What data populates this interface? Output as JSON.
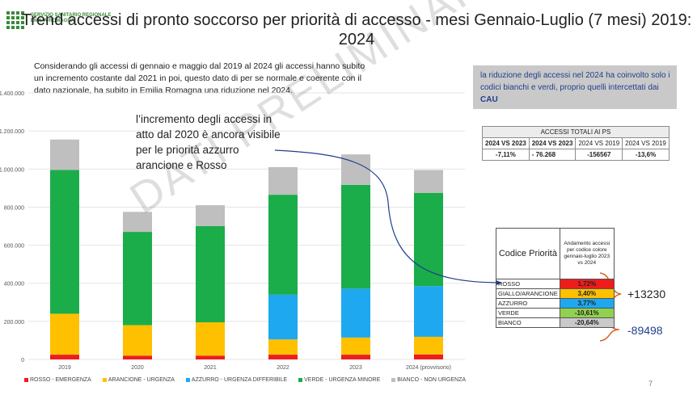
{
  "logo": {
    "line1": "SERVIZIO SANITARIO REGIONALE",
    "line2": "EMILIA-ROMAGNA"
  },
  "slide_title": "Trend accessi di pronto soccorso per priorità di accesso - mesi Gennaio-Luglio (7 mesi) 2019: 2024",
  "intro_text": "Considerando gli accessi di gennaio e maggio dal 2019 al 2024 gli accessi hanno subito un incremento costante dal 2021 in poi, questo dato di per se normale e coerente con il dato nazionale, ha subito in Emilia Romagna una riduzione nel 2024.",
  "note": {
    "text": "la riduzione degli accessi nel 2024 ha coinvolto solo i codici bianchi e verdi, proprio quelli intercettati dai ",
    "highlight": "CAU"
  },
  "callout": "l’incremento degli accessi in atto dal 2020 è ancora visibile per le priorità azzurro arancione e Rosso",
  "watermark": "DATI PRELIMINARI",
  "totals_table": {
    "header": "ACCESSI TOTALI AI PS",
    "columns": [
      "2024 VS 2023",
      "2024 VS 2023",
      "2024 VS 2019",
      "2024 VS 2019"
    ],
    "values": [
      "-7,11%",
      "-   76.268",
      "-156567",
      "-13,6%"
    ]
  },
  "priority_table": {
    "col1_header": "Codice Priorità",
    "col2_header": "Andamento accessi per codice colore gennaio-luglio 2023 vs 2024",
    "rows": [
      {
        "label": "ROSSO",
        "value": "1,72%",
        "color": "#ee1c1c"
      },
      {
        "label": "GIALLO/ARANCIONE",
        "value": "3,40%",
        "color": "#ffc000"
      },
      {
        "label": "AZZURRO",
        "value": "3,77%",
        "color": "#1ea8f0"
      },
      {
        "label": "VERDE",
        "value": "-10,61%",
        "color": "#92d050"
      },
      {
        "label": "BIANCO",
        "value": "-20,64%",
        "color": "#c9c9c9"
      }
    ]
  },
  "group_totals": {
    "up": "+13230",
    "down": "-89498"
  },
  "page_number": "7",
  "chart_data": {
    "type": "bar",
    "stacked": true,
    "categories": [
      "2019",
      "2020",
      "2021",
      "2022",
      "2023",
      "2024 (provvisorio)"
    ],
    "ylim": [
      0,
      1400000
    ],
    "yticks": [
      0,
      200000,
      400000,
      600000,
      800000,
      1000000,
      1200000,
      1400000
    ],
    "ytick_labels": [
      "0",
      "200.000",
      "400.000",
      "600.000",
      "800.000",
      "1.000.000",
      "1.200.000",
      "1.400.000"
    ],
    "grid": true,
    "legend_position": "bottom",
    "series": [
      {
        "name": "ROSSO - EMERGENZA",
        "color": "#ee1c1c",
        "values": [
          25000,
          20000,
          20000,
          25000,
          25000,
          26000
        ]
      },
      {
        "name": "ARANCIONE - URGENZA",
        "color": "#ffc000",
        "values": [
          215000,
          160000,
          175000,
          80000,
          90000,
          93000
        ]
      },
      {
        "name": "AZZURRO - URGENZA DIFFERIBILE",
        "color": "#1ea8f0",
        "values": [
          0,
          0,
          0,
          235000,
          257000,
          266000
        ]
      },
      {
        "name": "VERDE - URGENZA MINORE",
        "color": "#1aad4a",
        "values": [
          755000,
          490000,
          505000,
          525000,
          545000,
          490000
        ]
      },
      {
        "name": "BIANCO - NON URGENZA",
        "color": "#bfbfbf",
        "values": [
          160000,
          105000,
          110000,
          145000,
          160000,
          120000
        ]
      }
    ]
  }
}
